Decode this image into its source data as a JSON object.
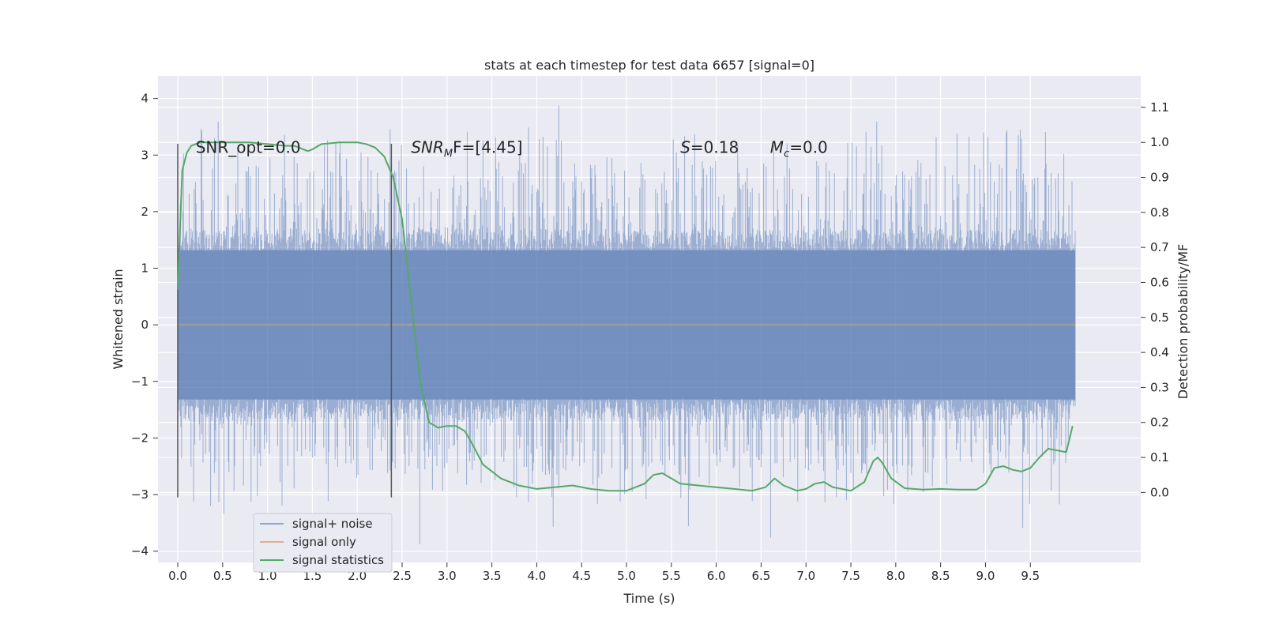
{
  "chart_data": {
    "type": "line",
    "title": "stats at each timestep for test data 6657 [signal=0]",
    "xlabel": "Time (s)",
    "ylabel": "Whitened strain",
    "y2label": "Detection probability/MF",
    "xlim": [
      -0.22,
      10.73
    ],
    "ylim": [
      -4.2,
      4.4
    ],
    "y2lim": [
      -0.2,
      1.19
    ],
    "x_ticks": [
      0.0,
      0.5,
      1.0,
      1.5,
      2.0,
      2.5,
      3.0,
      3.5,
      4.0,
      4.5,
      5.0,
      5.5,
      6.0,
      6.5,
      7.0,
      7.5,
      8.0,
      8.5,
      9.0,
      9.5
    ],
    "x_tick_labels": [
      "0.0",
      "0.5",
      "1.0",
      "1.5",
      "2.0",
      "2.5",
      "3.0",
      "3.5",
      "4.0",
      "4.5",
      "5.0",
      "5.5",
      "6.0",
      "6.5",
      "7.0",
      "7.5",
      "8.0",
      "8.5",
      "9.0",
      "9.5"
    ],
    "y_ticks": [
      4,
      3,
      2,
      1,
      0,
      -1,
      -2,
      -3,
      -4
    ],
    "y_tick_labels": [
      "4",
      "3",
      "2",
      "1",
      "0",
      "−1",
      "−2",
      "−3",
      "−4"
    ],
    "y2_ticks": [
      1.1,
      1.0,
      0.9,
      0.8,
      0.7,
      0.6,
      0.5,
      0.4,
      0.3,
      0.2,
      0.1,
      0.0
    ],
    "y2_tick_labels": [
      "1.1",
      "1.0",
      "0.9",
      "0.8",
      "0.7",
      "0.6",
      "0.5",
      "0.4",
      "0.3",
      "0.2",
      "0.1",
      "0.0"
    ],
    "grid": true,
    "background": "#eaeaf2",
    "series": [
      {
        "name": "signal+ noise",
        "axis": "left",
        "color": "#4c72b0",
        "kind": "noise",
        "x_range": [
          0.0,
          10.0
        ],
        "typical_abs_max": 1.3,
        "peak_max": 4.05,
        "peak_min": -3.9
      },
      {
        "name": "signal only",
        "axis": "left",
        "color": "#dd8452",
        "x": [
          0.0,
          10.0
        ],
        "y": [
          0.0,
          0.0
        ]
      },
      {
        "name": "signal statistics",
        "axis": "right",
        "color": "#55a868",
        "x": [
          0.0,
          0.05,
          0.1,
          0.15,
          0.25,
          0.4,
          0.6,
          0.8,
          1.0,
          1.2,
          1.3,
          1.4,
          1.45,
          1.5,
          1.6,
          1.8,
          2.0,
          2.1,
          2.2,
          2.3,
          2.4,
          2.5,
          2.6,
          2.7,
          2.8,
          2.9,
          3.0,
          3.1,
          3.2,
          3.3,
          3.4,
          3.6,
          3.8,
          4.0,
          4.2,
          4.4,
          4.6,
          4.8,
          5.0,
          5.2,
          5.3,
          5.4,
          5.5,
          5.6,
          5.8,
          6.0,
          6.2,
          6.4,
          6.55,
          6.65,
          6.75,
          6.9,
          7.0,
          7.1,
          7.2,
          7.3,
          7.5,
          7.65,
          7.75,
          7.8,
          7.85,
          7.95,
          8.1,
          8.3,
          8.5,
          8.7,
          8.9,
          9.0,
          9.1,
          9.2,
          9.3,
          9.4,
          9.5,
          9.6,
          9.7,
          9.8,
          9.9,
          9.97
        ],
        "y": [
          0.58,
          0.92,
          0.97,
          0.99,
          1.0,
          1.0,
          1.0,
          1.0,
          0.995,
          0.99,
          0.99,
          0.98,
          0.975,
          0.98,
          0.995,
          1.0,
          1.0,
          0.995,
          0.985,
          0.96,
          0.9,
          0.78,
          0.55,
          0.32,
          0.2,
          0.185,
          0.19,
          0.19,
          0.175,
          0.13,
          0.08,
          0.04,
          0.02,
          0.01,
          0.015,
          0.02,
          0.01,
          0.005,
          0.005,
          0.025,
          0.05,
          0.055,
          0.04,
          0.025,
          0.02,
          0.015,
          0.01,
          0.005,
          0.015,
          0.04,
          0.02,
          0.005,
          0.01,
          0.025,
          0.03,
          0.015,
          0.005,
          0.03,
          0.09,
          0.1,
          0.085,
          0.04,
          0.012,
          0.008,
          0.01,
          0.008,
          0.008,
          0.025,
          0.07,
          0.075,
          0.065,
          0.06,
          0.07,
          0.1,
          0.125,
          0.12,
          0.115,
          0.19
        ]
      }
    ],
    "vertical_lines": [
      0.0,
      2.38
    ],
    "vertical_lines_range": [
      -3.05,
      3.2
    ],
    "annotations": [
      {
        "text": "SNR_opt=0.0",
        "x": 0.2,
        "y": 3.15
      },
      {
        "text_main": "SNR",
        "text_sub": "M",
        "text_rest": "F=[4.45]",
        "x": 2.6,
        "y": 3.15
      },
      {
        "text_main": "S",
        "text_rest": "=0.18",
        "x": 5.6,
        "y": 3.15
      },
      {
        "text_main": "M",
        "text_sub": "c",
        "text_rest": "=0.0",
        "x": 6.6,
        "y": 3.15
      }
    ],
    "legend": {
      "position": "lower-left",
      "entries": [
        "signal+ noise",
        "signal only",
        "signal statistics"
      ]
    }
  }
}
